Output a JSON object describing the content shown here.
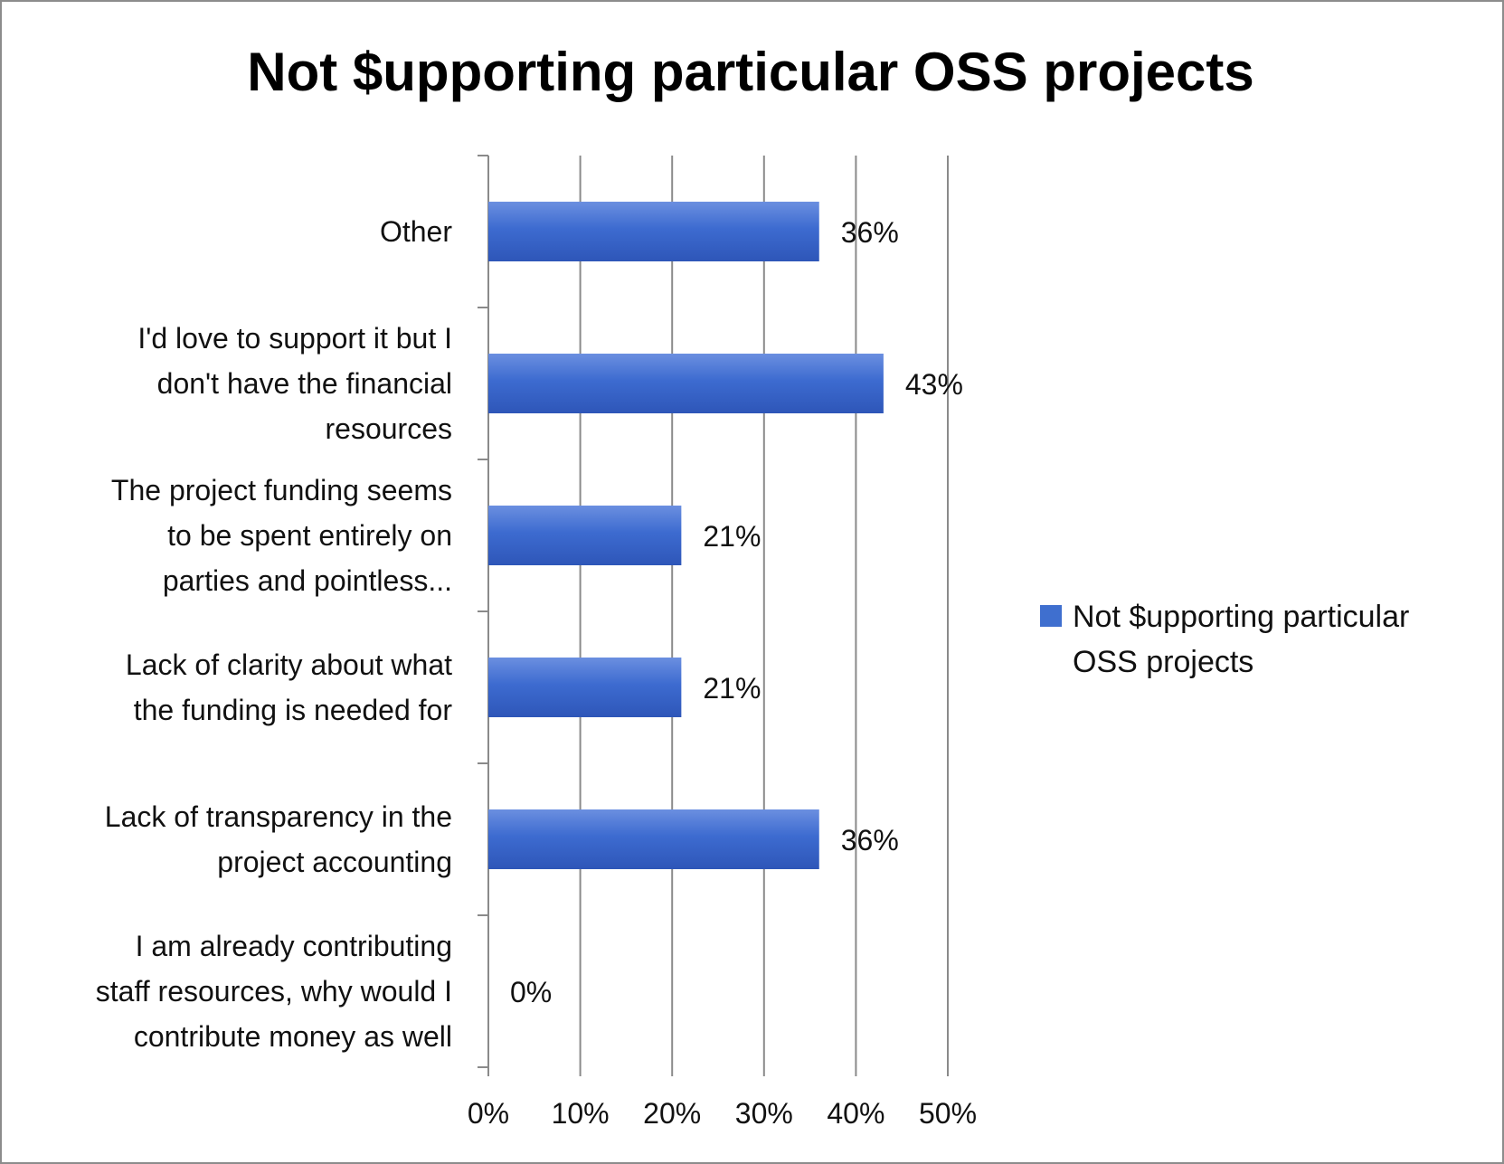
{
  "chart_data": {
    "type": "bar",
    "orientation": "horizontal",
    "title": "Not $upporting particular OSS projects",
    "categories": [
      [
        "Other"
      ],
      [
        "I'd love to support it but I",
        "don't have the financial",
        "resources"
      ],
      [
        "The project funding seems",
        "to be spent entirely on",
        "parties and pointless..."
      ],
      [
        "Lack of clarity about what",
        "the funding is needed for"
      ],
      [
        "Lack of transparency in the",
        "project accounting"
      ],
      [
        "I am already contributing",
        "staff resources, why would I",
        "contribute money as well"
      ]
    ],
    "series": [
      {
        "name": [
          "Not $upporting particular",
          "OSS projects"
        ],
        "values": [
          36,
          43,
          21,
          21,
          36,
          0
        ],
        "value_labels": [
          "36%",
          "43%",
          "21%",
          "21%",
          "36%",
          "0%"
        ],
        "color": "#3f6fcf"
      }
    ],
    "xlim": [
      0,
      50
    ],
    "xticks": [
      "0%",
      "10%",
      "20%",
      "30%",
      "40%",
      "50%"
    ],
    "grid": true,
    "legend": "right"
  }
}
